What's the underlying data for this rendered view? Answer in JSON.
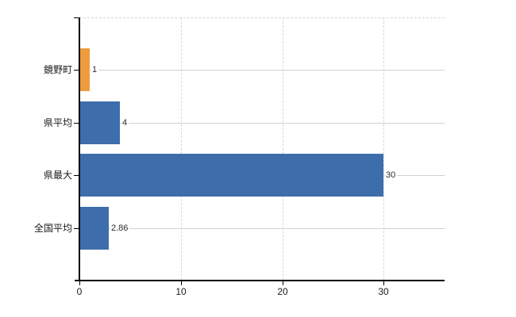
{
  "chart_data": {
    "type": "bar",
    "orientation": "horizontal",
    "title": "",
    "xlabel": "",
    "ylabel": "",
    "categories": [
      "鏡野町",
      "県平均",
      "県最大",
      "全国平均"
    ],
    "values": [
      1,
      4,
      30,
      2.86
    ],
    "value_labels": [
      "1",
      "4",
      "30",
      "2.86"
    ],
    "bar_colors": [
      "#ee9b3d",
      "#3d6eab",
      "#3d6eab",
      "#3d6eab"
    ],
    "x_ticks": [
      0,
      10,
      20,
      30
    ],
    "x_tick_labels": [
      "0",
      "10",
      "20",
      "30"
    ],
    "xlim": [
      0,
      36
    ],
    "grid": true,
    "legend": false
  },
  "colors": {
    "bar_orange": "#ee9b3d",
    "bar_blue": "#3d6eab",
    "vertical_gridline": "#d7d7d7",
    "category_gridline": "#cfd2cf",
    "axis": "#000000",
    "background": "#ffffff",
    "text": "#1a1a1a"
  }
}
